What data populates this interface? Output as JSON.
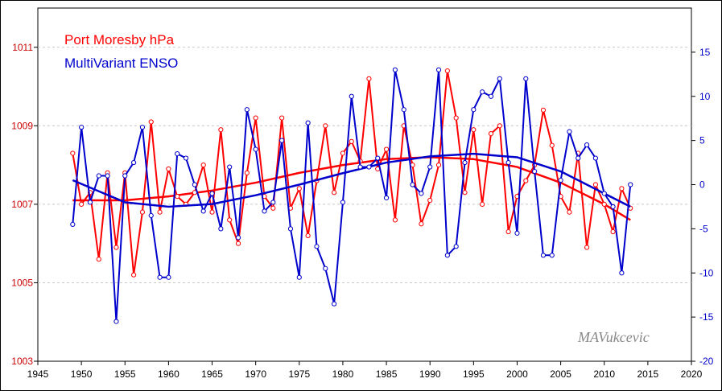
{
  "chart_data": {
    "type": "line",
    "x": [
      1949,
      1950,
      1951,
      1952,
      1953,
      1954,
      1955,
      1956,
      1957,
      1958,
      1959,
      1960,
      1961,
      1962,
      1963,
      1964,
      1965,
      1966,
      1967,
      1968,
      1969,
      1970,
      1971,
      1972,
      1973,
      1974,
      1975,
      1976,
      1977,
      1978,
      1979,
      1980,
      1981,
      1982,
      1983,
      1984,
      1985,
      1986,
      1987,
      1988,
      1989,
      1990,
      1991,
      1992,
      1993,
      1994,
      1995,
      1996,
      1997,
      1998,
      1999,
      2000,
      2001,
      2002,
      2003,
      2004,
      2005,
      2006,
      2007,
      2008,
      2009,
      2010,
      2011,
      2012,
      2013
    ],
    "series": [
      {
        "name": "Port Moresby hPa",
        "axis": "left",
        "color": "#ff0000",
        "values": [
          1008.3,
          1007.0,
          1007.3,
          1005.6,
          1007.8,
          1005.9,
          1007.8,
          1005.2,
          1006.8,
          1009.1,
          1006.8,
          1007.9,
          1007.2,
          1007.0,
          1007.3,
          1008.0,
          1006.8,
          1008.9,
          1006.6,
          1006.0,
          1007.8,
          1009.2,
          1007.2,
          1006.9,
          1009.2,
          1006.9,
          1007.4,
          1006.2,
          1007.6,
          1009.0,
          1007.3,
          1008.3,
          1008.6,
          1008.1,
          1010.2,
          1007.9,
          1008.4,
          1006.6,
          1009.0,
          1008.0,
          1006.5,
          1007.1,
          1008.0,
          1010.4,
          1009.2,
          1007.3,
          1008.9,
          1007.0,
          1008.8,
          1009.0,
          1006.3,
          1007.2,
          1007.6,
          1008.0,
          1009.4,
          1008.5,
          1007.2,
          1006.8,
          1008.3,
          1005.9,
          1007.5,
          1007.0,
          1006.3,
          1007.4,
          1006.9
        ],
        "trend_x": [
          1949,
          1955,
          1960,
          1965,
          1970,
          1975,
          1980,
          1985,
          1990,
          1995,
          2000,
          2005,
          2010,
          2013
        ],
        "trend": [
          1007.1,
          1007.1,
          1007.2,
          1007.35,
          1007.55,
          1007.8,
          1008.0,
          1008.15,
          1008.2,
          1008.15,
          1007.95,
          1007.55,
          1007.0,
          1006.6
        ]
      },
      {
        "name": "MultiVariant ENSO",
        "axis": "right",
        "color": "#0000cc",
        "values": [
          -4.5,
          6.5,
          -2.0,
          1.0,
          1.0,
          -15.5,
          1.0,
          2.5,
          6.5,
          -3.5,
          -10.5,
          -10.5,
          3.5,
          3.0,
          0.0,
          -3.0,
          -1.0,
          -5.0,
          2.0,
          -6.0,
          8.5,
          4.0,
          -3.0,
          -2.0,
          5.0,
          -5.0,
          -10.5,
          7.0,
          -7.0,
          -9.5,
          -13.5,
          -2.0,
          10.0,
          2.0,
          2.0,
          3.0,
          -1.5,
          13.0,
          8.5,
          0.0,
          -1.0,
          2.0,
          13.0,
          -8.0,
          -7.0,
          2.5,
          8.5,
          10.5,
          10.0,
          12.0,
          2.5,
          -5.5,
          12.0,
          1.5,
          -8.0,
          -8.0,
          0.5,
          6.0,
          3.0,
          4.5,
          3.0,
          -1.0,
          -2.5,
          -10.0,
          0.0
        ],
        "trend_x": [
          1949,
          1955,
          1960,
          1965,
          1970,
          1975,
          1980,
          1985,
          1990,
          1995,
          2000,
          2005,
          2010,
          2013
        ],
        "trend": [
          0.5,
          -2.0,
          -2.5,
          -2.2,
          -1.2,
          0.0,
          1.3,
          2.5,
          3.2,
          3.5,
          3.1,
          1.5,
          -1.0,
          -2.5
        ]
      }
    ],
    "xlim": [
      1945,
      2020
    ],
    "ylim_left": [
      1003,
      1012
    ],
    "ylim_right": [
      -20,
      20
    ],
    "x_ticks": [
      "1945",
      "1950",
      "1955",
      "1960",
      "1965",
      "1970",
      "1975",
      "1980",
      "1985",
      "1990",
      "1995",
      "2000",
      "2005",
      "2010",
      "2015",
      "2020"
    ],
    "left_ticks": [
      "1003",
      "1005",
      "1007",
      "1009",
      "1011"
    ],
    "right_ticks": [
      "-20",
      "-15",
      "-10",
      "-5",
      "0",
      "5",
      "10",
      "15"
    ],
    "legend_placement": "top-left",
    "grid": "horizontal dashed",
    "credit": "MAVukcevic"
  },
  "legend": {
    "red_label": "Port Moresby hPa",
    "blue_label": "MultiVariant ENSO"
  }
}
